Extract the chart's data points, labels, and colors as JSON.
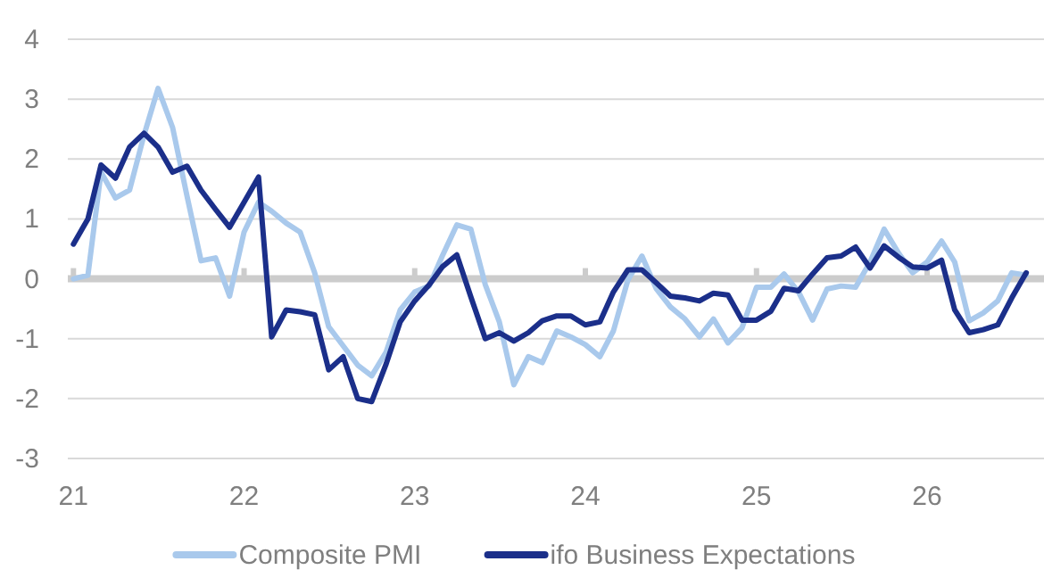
{
  "chart_data": {
    "type": "line",
    "x": [
      "2021-01",
      "2021-02",
      "2021-03",
      "2021-04",
      "2021-05",
      "2021-06",
      "2021-07",
      "2021-08",
      "2021-09",
      "2021-10",
      "2021-11",
      "2021-12",
      "2022-01",
      "2022-02",
      "2022-03",
      "2022-04",
      "2022-05",
      "2022-06",
      "2022-07",
      "2022-08",
      "2022-09",
      "2022-10",
      "2022-11",
      "2022-12",
      "2023-01",
      "2023-02",
      "2023-03",
      "2023-04",
      "2023-05",
      "2023-06",
      "2023-07",
      "2023-08",
      "2023-09",
      "2023-10",
      "2023-11",
      "2023-12",
      "2024-01",
      "2024-02",
      "2024-03",
      "2024-04",
      "2024-05",
      "2024-06",
      "2024-07",
      "2024-08",
      "2024-09",
      "2024-10",
      "2024-11",
      "2024-12",
      "2025-01",
      "2025-02",
      "2025-03",
      "2025-04",
      "2025-05",
      "2025-06",
      "2025-07",
      "2025-08",
      "2025-09",
      "2025-10",
      "2025-11",
      "2025-12",
      "2026-01",
      "2026-02",
      "2026-03",
      "2026-04",
      "2026-05",
      "2026-06",
      "2026-07",
      "2026-08"
    ],
    "series": [
      {
        "name": "Composite PMI",
        "color": "#a9c9ec",
        "values": [
          0,
          0.06,
          1.78,
          1.35,
          1.48,
          2.4,
          3.18,
          2.53,
          1.38,
          0.3,
          0.35,
          -0.29,
          0.78,
          1.28,
          1.13,
          0.93,
          0.78,
          0.1,
          -0.8,
          -1.12,
          -1.44,
          -1.62,
          -1.22,
          -0.52,
          -0.22,
          -0.12,
          0.38,
          0.9,
          0.83,
          -0.1,
          -0.72,
          -1.77,
          -1.3,
          -1.4,
          -0.87,
          -0.97,
          -1.1,
          -1.3,
          -0.87,
          -0.02,
          0.38,
          -0.17,
          -0.47,
          -0.67,
          -0.97,
          -0.67,
          -1.07,
          -0.82,
          -0.14,
          -0.14,
          0.08,
          -0.22,
          -0.69,
          -0.17,
          -0.12,
          -0.14,
          0.28,
          0.83,
          0.43,
          0.1,
          0.28,
          0.63,
          0.28,
          -0.7,
          -0.57,
          -0.37,
          0.1,
          0.06
        ]
      },
      {
        "name": "ifo Business Expectations",
        "color": "#1b2f8a",
        "values": [
          0.58,
          1.0,
          1.9,
          1.68,
          2.2,
          2.43,
          2.2,
          1.78,
          1.88,
          1.48,
          1.16,
          0.86,
          1.28,
          1.7,
          -0.97,
          -0.52,
          -0.55,
          -0.6,
          -1.52,
          -1.3,
          -2.0,
          -2.05,
          -1.42,
          -0.72,
          -0.37,
          -0.1,
          0.2,
          0.4,
          -0.3,
          -1.0,
          -0.9,
          -1.04,
          -0.9,
          -0.7,
          -0.62,
          -0.62,
          -0.77,
          -0.72,
          -0.22,
          0.15,
          0.15,
          -0.07,
          -0.29,
          -0.32,
          -0.37,
          -0.24,
          -0.27,
          -0.69,
          -0.69,
          -0.54,
          -0.16,
          -0.2,
          0.08,
          0.35,
          0.38,
          0.53,
          0.18,
          0.55,
          0.36,
          0.2,
          0.18,
          0.31,
          -0.52,
          -0.9,
          -0.85,
          -0.77,
          -0.32,
          0.1
        ]
      }
    ],
    "xlim": [
      "2020-12-20",
      "2026-09-08"
    ],
    "xticks": [
      {
        "value": "2021-01",
        "label": "21"
      },
      {
        "value": "2022-01",
        "label": "22"
      },
      {
        "value": "2023-01",
        "label": "23"
      },
      {
        "value": "2024-01",
        "label": "24"
      },
      {
        "value": "2025-01",
        "label": "25"
      },
      {
        "value": "2026-01",
        "label": "26"
      }
    ],
    "ylim": [
      -3,
      4
    ],
    "yticks": [
      -3,
      -2,
      -1,
      0,
      1,
      2,
      3,
      4
    ],
    "grid": "y",
    "legend": "bottom",
    "marker": "none",
    "line_style": "solid"
  }
}
